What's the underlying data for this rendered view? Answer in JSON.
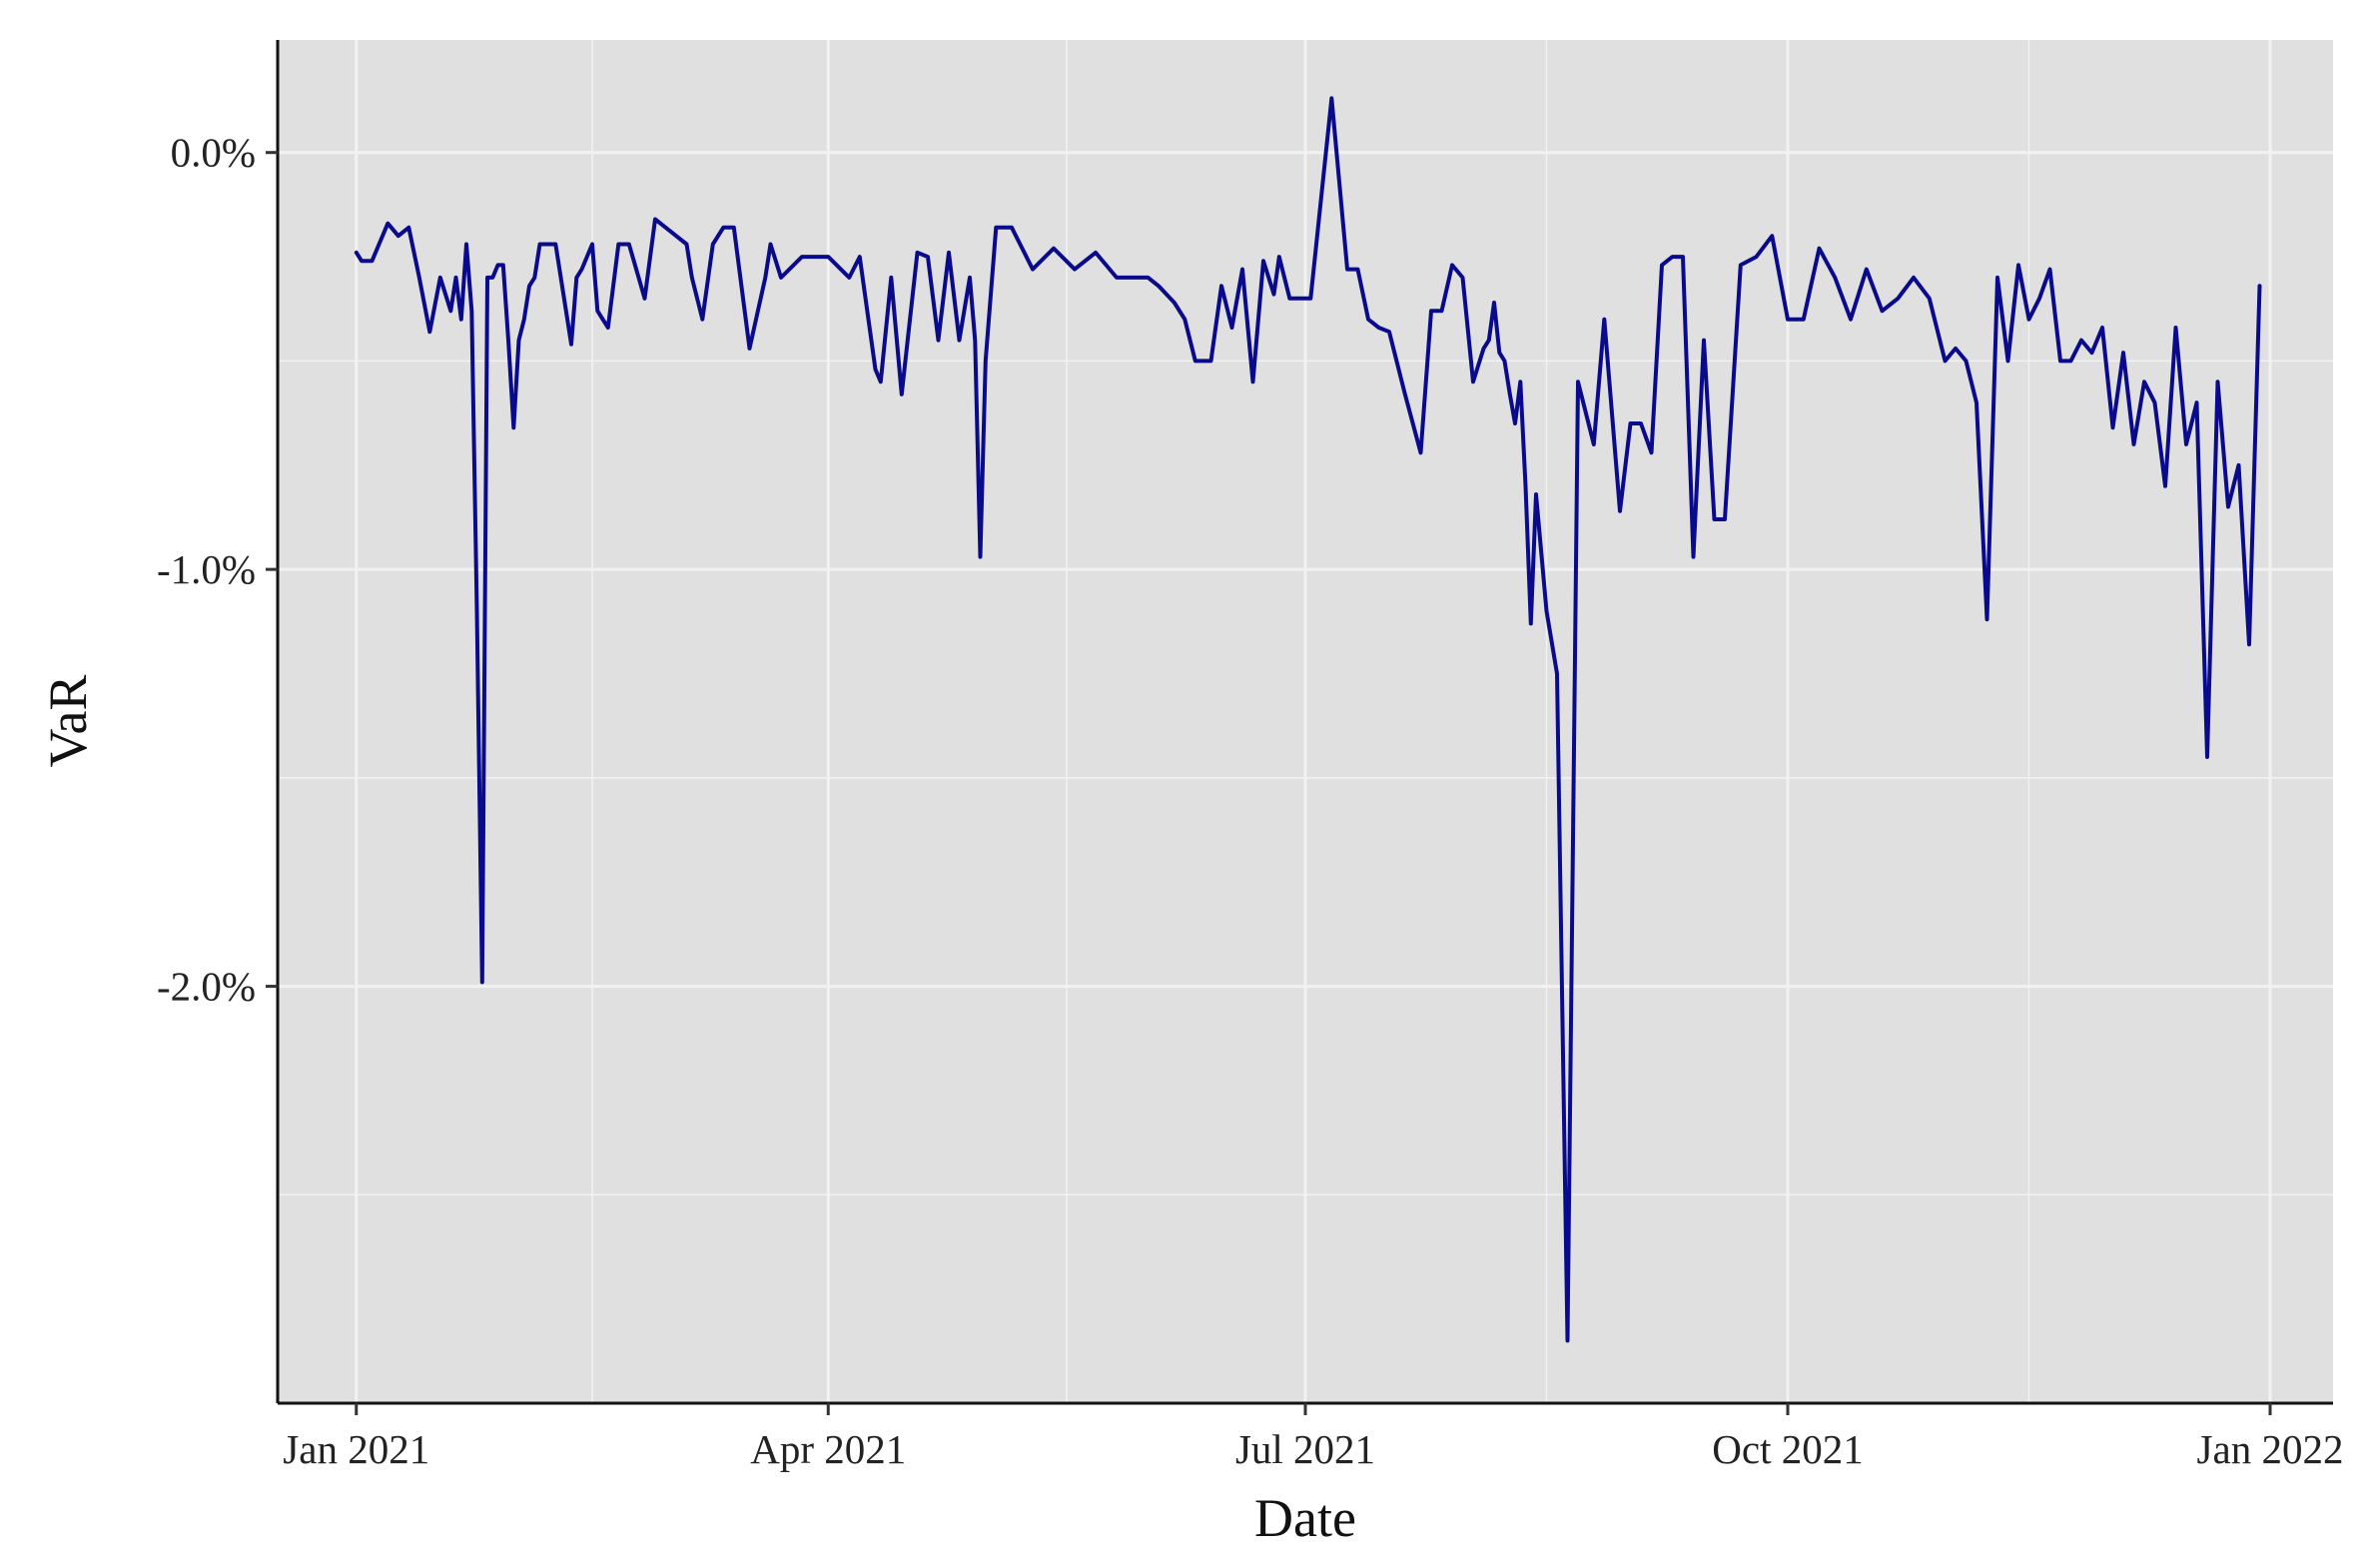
{
  "chart_data": {
    "type": "line",
    "title": "",
    "xlabel": "Date",
    "ylabel": "VaR",
    "x_ticks": [
      "Jan 2021",
      "Apr 2021",
      "Jul 2021",
      "Oct 2021",
      "Jan 2022"
    ],
    "y_ticks": [
      "0.0%",
      "-1.0%",
      "-2.0%"
    ],
    "y_unit": "%",
    "xlim": [
      "2020-12-17",
      "2022-01-13"
    ],
    "ylim": [
      -3.0,
      0.27
    ],
    "grid": true,
    "legend": "none",
    "colors": {
      "line": "#0a0a8c",
      "panel": "#e0e0e0",
      "grid": "#f2f2f2"
    },
    "series": [
      {
        "x": [
          "2021-01-01",
          "2021-01-02",
          "2021-01-04",
          "2021-01-07",
          "2021-01-09",
          "2021-01-11",
          "2021-01-13",
          "2021-01-15",
          "2021-01-17",
          "2021-01-19",
          "2021-01-20",
          "2021-01-21",
          "2021-01-22",
          "2021-01-23",
          "2021-01-24",
          "2021-01-25",
          "2021-01-26",
          "2021-01-27",
          "2021-01-28",
          "2021-01-29",
          "2021-01-30",
          "2021-01-31",
          "2021-02-01",
          "2021-02-02",
          "2021-02-03",
          "2021-02-04",
          "2021-02-05",
          "2021-02-08",
          "2021-02-11",
          "2021-02-12",
          "2021-02-13",
          "2021-02-15",
          "2021-02-16",
          "2021-02-17",
          "2021-02-18",
          "2021-02-20",
          "2021-02-22",
          "2021-02-25",
          "2021-02-27",
          "2021-03-01",
          "2021-03-05",
          "2021-03-06",
          "2021-03-08",
          "2021-03-10",
          "2021-03-12",
          "2021-03-14",
          "2021-03-17",
          "2021-03-20",
          "2021-03-21",
          "2021-03-23",
          "2021-03-27",
          "2021-04-01",
          "2021-04-05",
          "2021-04-07",
          "2021-04-10",
          "2021-04-11",
          "2021-04-13",
          "2021-04-15",
          "2021-04-18",
          "2021-04-20",
          "2021-04-22",
          "2021-04-24",
          "2021-04-26",
          "2021-04-28",
          "2021-04-29",
          "2021-04-30",
          "2021-05-01",
          "2021-05-03",
          "2021-05-06",
          "2021-05-10",
          "2021-05-14",
          "2021-05-18",
          "2021-05-22",
          "2021-05-26",
          "2021-05-29",
          "2021-06-01",
          "2021-06-03",
          "2021-06-06",
          "2021-06-08",
          "2021-06-10",
          "2021-06-13",
          "2021-06-15",
          "2021-06-17",
          "2021-06-19",
          "2021-06-21",
          "2021-06-23",
          "2021-06-25",
          "2021-06-26",
          "2021-06-28",
          "2021-07-02",
          "2021-07-06",
          "2021-07-09",
          "2021-07-11",
          "2021-07-13",
          "2021-07-15",
          "2021-07-17",
          "2021-07-20",
          "2021-07-23",
          "2021-07-25",
          "2021-07-27",
          "2021-07-29",
          "2021-07-31",
          "2021-08-02",
          "2021-08-04",
          "2021-08-05",
          "2021-08-06",
          "2021-08-07",
          "2021-08-08",
          "2021-08-09",
          "2021-08-10",
          "2021-08-11",
          "2021-08-12",
          "2021-08-13",
          "2021-08-14",
          "2021-08-16",
          "2021-08-18",
          "2021-08-20",
          "2021-08-22",
          "2021-08-25",
          "2021-08-27",
          "2021-08-30",
          "2021-09-01",
          "2021-09-03",
          "2021-09-05",
          "2021-09-07",
          "2021-09-09",
          "2021-09-11",
          "2021-09-13",
          "2021-09-15",
          "2021-09-17",
          "2021-09-19",
          "2021-09-22",
          "2021-09-25",
          "2021-09-28",
          "2021-10-01",
          "2021-10-04",
          "2021-10-07",
          "2021-10-10",
          "2021-10-13",
          "2021-10-16",
          "2021-10-19",
          "2021-10-22",
          "2021-10-25",
          "2021-10-28",
          "2021-10-31",
          "2021-11-02",
          "2021-11-04",
          "2021-11-06",
          "2021-11-08",
          "2021-11-10",
          "2021-11-12",
          "2021-11-14",
          "2021-11-16",
          "2021-11-18",
          "2021-11-20",
          "2021-11-22",
          "2021-11-24",
          "2021-11-26",
          "2021-11-28",
          "2021-11-30",
          "2021-12-02",
          "2021-12-04",
          "2021-12-06",
          "2021-12-08",
          "2021-12-10",
          "2021-12-12",
          "2021-12-14",
          "2021-12-16",
          "2021-12-18",
          "2021-12-20",
          "2021-12-22",
          "2021-12-24",
          "2021-12-26",
          "2021-12-28",
          "2021-12-30"
        ],
        "y": [
          -0.24,
          -0.26,
          -0.26,
          -0.17,
          -0.2,
          -0.18,
          -0.3,
          -0.43,
          -0.3,
          -0.38,
          -0.3,
          -0.4,
          -0.22,
          -0.38,
          -1.1,
          -1.99,
          -0.3,
          -0.3,
          -0.27,
          -0.27,
          -0.45,
          -0.66,
          -0.45,
          -0.4,
          -0.32,
          -0.3,
          -0.22,
          -0.22,
          -0.46,
          -0.3,
          -0.28,
          -0.22,
          -0.38,
          -0.4,
          -0.42,
          -0.22,
          -0.22,
          -0.35,
          -0.16,
          -0.18,
          -0.22,
          -0.3,
          -0.4,
          -0.22,
          -0.18,
          -0.18,
          -0.47,
          -0.3,
          -0.22,
          -0.3,
          -0.25,
          -0.25,
          -0.3,
          -0.25,
          -0.52,
          -0.55,
          -0.3,
          -0.58,
          -0.24,
          -0.25,
          -0.45,
          -0.24,
          -0.45,
          -0.3,
          -0.45,
          -0.97,
          -0.5,
          -0.18,
          -0.18,
          -0.28,
          -0.23,
          -0.28,
          -0.24,
          -0.3,
          -0.3,
          -0.3,
          -0.32,
          -0.36,
          -0.4,
          -0.5,
          -0.5,
          -0.32,
          -0.42,
          -0.28,
          -0.55,
          -0.26,
          -0.34,
          -0.25,
          -0.35,
          -0.35,
          0.13,
          -0.28,
          -0.28,
          -0.4,
          -0.42,
          -0.43,
          -0.58,
          -0.72,
          -0.38,
          -0.38,
          -0.27,
          -0.3,
          -0.55,
          -0.47,
          -0.45,
          -0.36,
          -0.48,
          -0.5,
          -0.58,
          -0.65,
          -0.55,
          -0.8,
          -1.13,
          -0.82,
          -1.1,
          -1.25,
          -2.85,
          -0.55,
          -0.7,
          -0.4,
          -0.86,
          -0.65,
          -0.65,
          -0.72,
          -0.27,
          -0.25,
          -0.25,
          -0.97,
          -0.45,
          -0.88,
          -0.88,
          -0.27,
          -0.25,
          -0.2,
          -0.4,
          -0.4,
          -0.23,
          -0.3,
          -0.4,
          -0.28,
          -0.38,
          -0.35,
          -0.3,
          -0.35,
          -0.5,
          -0.47,
          -0.5,
          -0.6,
          -1.12,
          -0.3,
          -0.5,
          -0.27,
          -0.4,
          -0.35,
          -0.28,
          -0.5,
          -0.5,
          -0.45,
          -0.48,
          -0.42,
          -0.66,
          -0.48,
          -0.7,
          -0.55,
          -0.6,
          -0.8,
          -0.42,
          -0.7,
          -0.6,
          -1.45,
          -0.55,
          -0.85,
          -0.75,
          -1.18,
          -0.32
        ]
      }
    ]
  }
}
